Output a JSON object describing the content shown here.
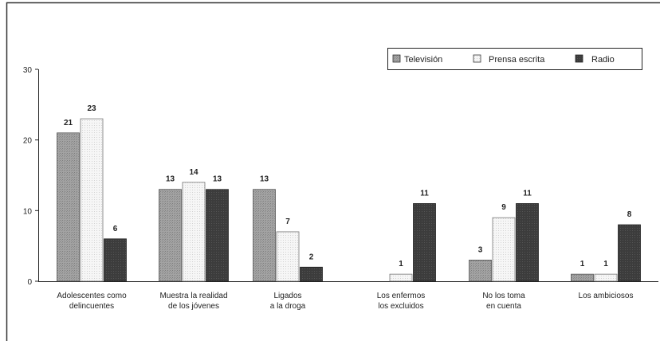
{
  "chart_data": {
    "type": "bar",
    "title": "",
    "xlabel": "",
    "ylabel": "",
    "ylim": [
      0,
      30
    ],
    "y_ticks": [
      "0",
      "10",
      "20",
      "30"
    ],
    "categories": [
      [
        "Adolescentes como",
        "delincuentes"
      ],
      [
        "Muestra la realidad",
        "de los jóvenes"
      ],
      [
        "Ligados",
        "a la droga"
      ],
      [
        "Los enfermos",
        "los excluidos"
      ],
      [
        "No los toma",
        "en cuenta"
      ],
      [
        "Los ambiciosos"
      ]
    ],
    "series": [
      {
        "name": "Televisión",
        "values": [
          21,
          13,
          13,
          null,
          3,
          1
        ],
        "color": "#9a9a9a"
      },
      {
        "name": "Prensa escrita",
        "values": [
          23,
          14,
          7,
          1,
          9,
          1
        ],
        "color": "#f2f2f2"
      },
      {
        "name": "Radio",
        "values": [
          6,
          13,
          2,
          11,
          11,
          8
        ],
        "color": "#3d3d3d"
      }
    ],
    "grid": false,
    "legend": "top-right"
  }
}
